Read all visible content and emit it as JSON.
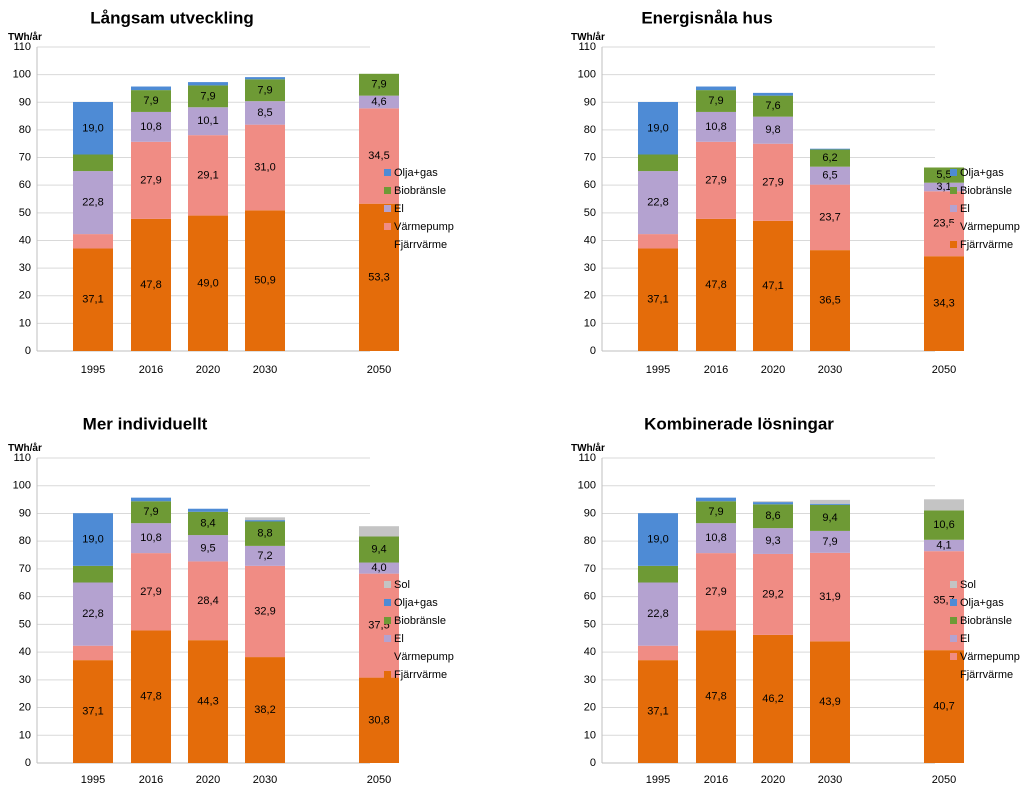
{
  "colors": {
    "Fjärrvärme": "#E46C0A",
    "Värmepump": "#F08C84",
    "El": "#B4A2D0",
    "Biobränsle": "#6E9A35",
    "Olja+gas": "#4E8BD5",
    "Sol": "#C4C4C4",
    "Residual": "#6E9A35"
  },
  "chart_data": [
    {
      "type": "bar",
      "stacked": true,
      "title": "Långsam utveckling",
      "ylabel": "TWh/år",
      "ylim": [
        0,
        110
      ],
      "yticks": [
        0,
        10,
        20,
        30,
        40,
        50,
        60,
        70,
        80,
        90,
        100,
        110
      ],
      "categories": [
        "1995",
        "2016",
        "2020",
        "2030",
        "",
        "2050"
      ],
      "legend": [
        "Olja+gas",
        "Biobränsle",
        "El",
        "Värmepump",
        "Fjärrvärme"
      ],
      "series": [
        {
          "name": "Fjärrvärme",
          "values": [
            37.1,
            47.8,
            49.0,
            50.9,
            null,
            53.3
          ],
          "labels": [
            "37,1",
            "47,8",
            "49,0",
            "50,9",
            null,
            "53,3"
          ]
        },
        {
          "name": "Värmepump",
          "values": [
            5.2,
            27.9,
            29.1,
            31.0,
            null,
            34.5
          ],
          "labels": [
            null,
            "27,9",
            "29,1",
            "31,0",
            null,
            "34,5"
          ]
        },
        {
          "name": "El",
          "values": [
            22.8,
            10.8,
            10.1,
            8.5,
            null,
            4.6
          ],
          "labels": [
            "22,8",
            "10,8",
            "10,1",
            "8,5",
            null,
            "4,6"
          ]
        },
        {
          "name": "Biobränsle",
          "values": [
            6.0,
            7.9,
            7.9,
            7.9,
            null,
            7.9
          ],
          "labels": [
            null,
            "7,9",
            "7,9",
            "7,9",
            null,
            "7,9"
          ]
        },
        {
          "name": "Olja+gas",
          "values": [
            19.0,
            1.3,
            1.2,
            0.8,
            null,
            0
          ],
          "labels": [
            "19,0",
            null,
            null,
            null,
            null,
            null
          ]
        }
      ]
    },
    {
      "type": "bar",
      "stacked": true,
      "title": "Energisnåla hus",
      "ylabel": "TWh/år",
      "ylim": [
        0,
        110
      ],
      "yticks": [
        0,
        10,
        20,
        30,
        40,
        50,
        60,
        70,
        80,
        90,
        100,
        110
      ],
      "categories": [
        "1995",
        "2016",
        "2020",
        "2030",
        "",
        "2050"
      ],
      "legend": [
        "Olja+gas",
        "Biobränsle",
        "El",
        "Värmepump",
        "Fjärrvärme"
      ],
      "series": [
        {
          "name": "Fjärrvärme",
          "values": [
            37.1,
            47.8,
            47.1,
            36.5,
            null,
            34.3
          ],
          "labels": [
            "37,1",
            "47,8",
            "47,1",
            "36,5",
            null,
            "34,3"
          ]
        },
        {
          "name": "Värmepump",
          "values": [
            5.2,
            27.9,
            27.9,
            23.7,
            null,
            23.5
          ],
          "labels": [
            null,
            "27,9",
            "27,9",
            "23,7",
            null,
            "23,5"
          ]
        },
        {
          "name": "El",
          "values": [
            22.8,
            10.8,
            9.8,
            6.5,
            null,
            3.1
          ],
          "labels": [
            "22,8",
            "10,8",
            "9,8",
            "6,5",
            null,
            "3,1"
          ]
        },
        {
          "name": "Biobränsle",
          "values": [
            6.0,
            7.9,
            7.6,
            6.2,
            null,
            5.5
          ],
          "labels": [
            null,
            "7,9",
            "7,6",
            "6,2",
            null,
            "5,5"
          ]
        },
        {
          "name": "Olja+gas",
          "values": [
            19.0,
            1.3,
            1.0,
            0.3,
            null,
            0
          ],
          "labels": [
            "19,0",
            null,
            null,
            null,
            null,
            null
          ]
        }
      ]
    },
    {
      "type": "bar",
      "stacked": true,
      "title": "Mer individuellt",
      "ylabel": "TWh/år",
      "ylim": [
        0,
        110
      ],
      "yticks": [
        0,
        10,
        20,
        30,
        40,
        50,
        60,
        70,
        80,
        90,
        100,
        110
      ],
      "categories": [
        "1995",
        "2016",
        "2020",
        "2030",
        "",
        "2050"
      ],
      "legend": [
        "Sol",
        "Olja+gas",
        "Biobränsle",
        "El",
        "Värmepump",
        "Fjärrvärme"
      ],
      "series": [
        {
          "name": "Fjärrvärme",
          "values": [
            37.1,
            47.8,
            44.3,
            38.2,
            null,
            30.8
          ],
          "labels": [
            "37,1",
            "47,8",
            "44,3",
            "38,2",
            null,
            "30,8"
          ]
        },
        {
          "name": "Värmepump",
          "values": [
            5.2,
            27.9,
            28.4,
            32.9,
            null,
            37.5
          ],
          "labels": [
            null,
            "27,9",
            "28,4",
            "32,9",
            null,
            "37,5"
          ]
        },
        {
          "name": "El",
          "values": [
            22.8,
            10.8,
            9.5,
            7.2,
            null,
            4.0
          ],
          "labels": [
            "22,8",
            "10,8",
            "9,5",
            "7,2",
            null,
            "4,0"
          ]
        },
        {
          "name": "Biobränsle",
          "values": [
            6.0,
            7.9,
            8.4,
            8.8,
            null,
            9.4
          ],
          "labels": [
            null,
            "7,9",
            "8,4",
            "8,8",
            null,
            "9,4"
          ]
        },
        {
          "name": "Olja+gas",
          "values": [
            19.0,
            1.3,
            1.1,
            0.5,
            null,
            0
          ],
          "labels": [
            "19,0",
            null,
            null,
            null,
            null,
            null
          ]
        },
        {
          "name": "Sol",
          "values": [
            0,
            0,
            0,
            1.0,
            null,
            3.7
          ],
          "labels": [
            null,
            null,
            null,
            null,
            null,
            null
          ]
        }
      ]
    },
    {
      "type": "bar",
      "stacked": true,
      "title": "Kombinerade lösningar",
      "ylabel": "TWh/år",
      "ylim": [
        0,
        110
      ],
      "yticks": [
        0,
        10,
        20,
        30,
        40,
        50,
        60,
        70,
        80,
        90,
        100,
        110
      ],
      "categories": [
        "1995",
        "2016",
        "2020",
        "2030",
        "",
        "2050"
      ],
      "legend": [
        "Sol",
        "Olja+gas",
        "Biobränsle",
        "El",
        "Värmepump",
        "Fjärrvärme"
      ],
      "series": [
        {
          "name": "Fjärrvärme",
          "values": [
            37.1,
            47.8,
            46.2,
            43.9,
            null,
            40.7
          ],
          "labels": [
            "37,1",
            "47,8",
            "46,2",
            "43,9",
            null,
            "40,7"
          ]
        },
        {
          "name": "Värmepump",
          "values": [
            5.2,
            27.9,
            29.2,
            31.9,
            null,
            35.7
          ],
          "labels": [
            null,
            "27,9",
            "29,2",
            "31,9",
            null,
            "35,7"
          ]
        },
        {
          "name": "El",
          "values": [
            22.8,
            10.8,
            9.3,
            7.9,
            null,
            4.1
          ],
          "labels": [
            "22,8",
            "10,8",
            "9,3",
            "7,9",
            null,
            "4,1"
          ]
        },
        {
          "name": "Biobränsle",
          "values": [
            6.0,
            7.9,
            8.6,
            9.4,
            null,
            10.6
          ],
          "labels": [
            null,
            "7,9",
            "8,6",
            "9,4",
            null,
            "10,6"
          ]
        },
        {
          "name": "Olja+gas",
          "values": [
            19.0,
            1.3,
            0.8,
            0.4,
            null,
            0
          ],
          "labels": [
            "19,0",
            null,
            null,
            null,
            null,
            null
          ]
        },
        {
          "name": "Sol",
          "values": [
            0,
            0,
            0.3,
            1.4,
            null,
            4.0
          ],
          "labels": [
            null,
            null,
            null,
            null,
            null,
            null
          ]
        }
      ]
    }
  ]
}
